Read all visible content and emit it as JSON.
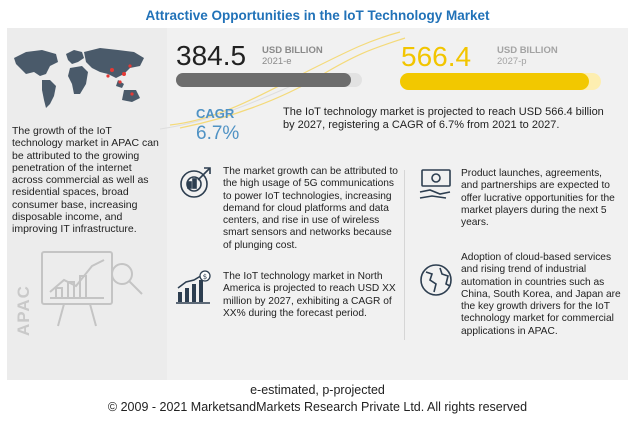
{
  "title": "Attractive Opportunities in the IoT Technology Market",
  "market": {
    "value_2021": "384.5",
    "unit_2021_line1": "USD BILLION",
    "unit_2021_line2": "2021-e",
    "value_2027": "566.4",
    "unit_2027_line1": "USD BILLION",
    "unit_2027_line2": "2027-p",
    "cagr_label": "CAGR",
    "cagr_value": "6.7%",
    "bar_2021_fraction": 0.94,
    "bar_2027_fraction": 0.94
  },
  "summary": "The IoT technology market is projected to reach USD 566.4 billion by 2027, registering a CAGR of 6.7% from 2021 to 2027.",
  "apac": {
    "text": "The growth of the IoT technology market in APAC can be attributed to the growing penetration of the internet across commercial as well as residential spaces, broad consumer base, increasing disposable income, and improving IT infrastructure.",
    "label": "APAC"
  },
  "insights": {
    "growth_5g": "The market growth can be attributed to the high usage of 5G communications to power IoT technologies, increasing demand for cloud platforms and data centers, and rise in use of wireless smart sensors  and networks because of plunging cost.",
    "north_america": "The IoT technology market in North America is projected to reach USD XX million by 2027, exhibiting a CAGR of XX% during the forecast period.",
    "product_launches": "Product launches, agreements, and partnerships are expected to offer lucrative opportunities for the market players during the next 5 years.",
    "cloud_adoption": "Adoption of cloud-based services and rising trend of industrial automation in countries such as China, South Korea, and Japan are the key growth drivers for the IoT technology market for commercial applications in APAC."
  },
  "footer": {
    "note": "e-estimated, p-projected",
    "copyright": "© 2009 - 2021  MarketsandMarkets Research Private Ltd. All rights reserved"
  },
  "colors": {
    "title": "#2172b8",
    "accent_yellow": "#f2c800",
    "cagr_blue": "#4f92c4",
    "bar_gray": "#6d6d6d"
  }
}
